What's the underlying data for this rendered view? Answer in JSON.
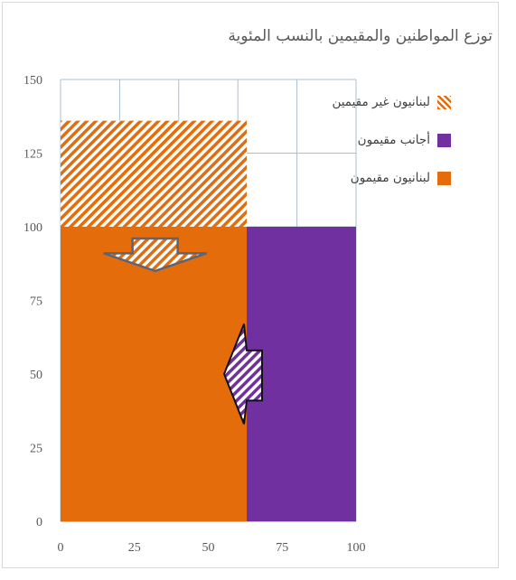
{
  "chart_data": {
    "type": "area",
    "title": "توزع المواطنين والمقيمين بالنسب المئوية",
    "x_ticks": [
      "0",
      "25",
      "50",
      "75",
      "100"
    ],
    "y_ticks": [
      "0",
      "25",
      "50",
      "75",
      "100",
      "125",
      "150"
    ],
    "xlim": [
      0,
      100
    ],
    "ylim": [
      0,
      150
    ],
    "grid": true,
    "legend_position": "top-right",
    "series": [
      {
        "name": "لبنانيون غير مقيمين",
        "x": [
          0,
          63
        ],
        "y": [
          100,
          136
        ],
        "color": "#E46C0A",
        "pattern": "hatched"
      },
      {
        "name": "أجانب مقيمون",
        "x": [
          63,
          100
        ],
        "y": [
          0,
          100
        ],
        "color": "#7030A0",
        "pattern": "solid"
      },
      {
        "name": "لبنانيون مقيمون",
        "x": [
          0,
          63
        ],
        "y": [
          0,
          100
        ],
        "color": "#E46C0A",
        "pattern": "solid"
      }
    ],
    "annotations": [
      {
        "type": "arrow",
        "direction": "down",
        "fill": "hatched-orange"
      },
      {
        "type": "arrow",
        "direction": "left",
        "fill": "hatched-purple"
      }
    ]
  }
}
